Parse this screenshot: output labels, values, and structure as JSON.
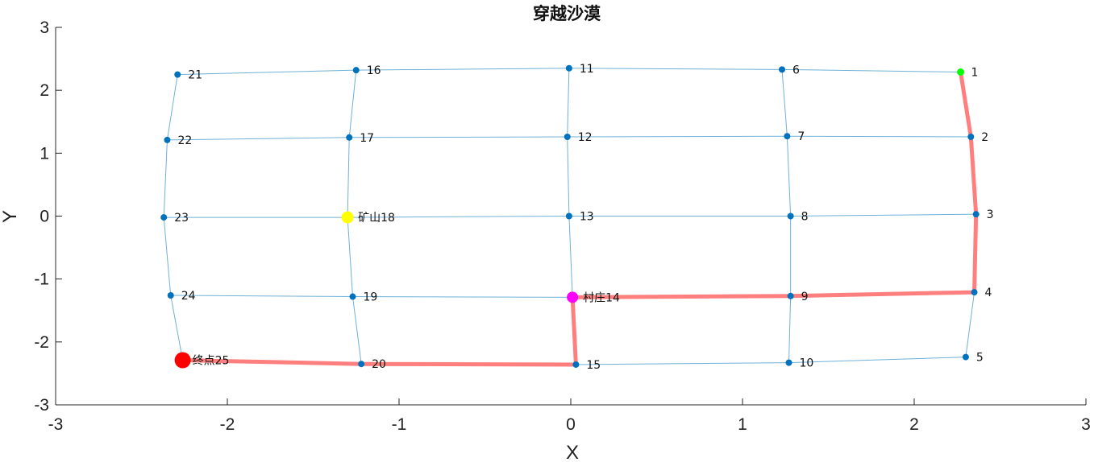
{
  "chart_data": {
    "type": "scatter",
    "title": "穿越沙漠",
    "xlabel": "X",
    "ylabel": "Y",
    "xlim": [
      -3,
      3
    ],
    "ylim": [
      -3,
      3
    ],
    "xticks": [
      "-3",
      "-2",
      "-1",
      "0",
      "1",
      "2",
      "3"
    ],
    "yticks": [
      "-3",
      "-2",
      "-1",
      "0",
      "1",
      "2",
      "3"
    ],
    "grid": false,
    "colors": {
      "edge": "#6fb0d8",
      "node": "#0072bd",
      "path": "#ff7f7f",
      "start": "#00ff00",
      "mine": "#ffff00",
      "village": "#ff00ff",
      "end": "#ff0000",
      "axis": "#262626"
    },
    "nodes": [
      {
        "id": 1,
        "label": "1",
        "x": 2.27,
        "y": 2.29,
        "role": "start"
      },
      {
        "id": 2,
        "label": "2",
        "x": 2.33,
        "y": 1.26,
        "role": "normal"
      },
      {
        "id": 3,
        "label": "3",
        "x": 2.36,
        "y": 0.03,
        "role": "normal"
      },
      {
        "id": 4,
        "label": "4",
        "x": 2.35,
        "y": -1.21,
        "role": "normal"
      },
      {
        "id": 5,
        "label": "5",
        "x": 2.3,
        "y": -2.24,
        "role": "normal"
      },
      {
        "id": 6,
        "label": "6",
        "x": 1.23,
        "y": 2.33,
        "role": "normal"
      },
      {
        "id": 7,
        "label": "7",
        "x": 1.26,
        "y": 1.27,
        "role": "normal"
      },
      {
        "id": 8,
        "label": "8",
        "x": 1.28,
        "y": 0.0,
        "role": "normal"
      },
      {
        "id": 9,
        "label": "9",
        "x": 1.28,
        "y": -1.27,
        "role": "normal"
      },
      {
        "id": 10,
        "label": "10",
        "x": 1.27,
        "y": -2.33,
        "role": "normal"
      },
      {
        "id": 11,
        "label": "11",
        "x": -0.01,
        "y": 2.35,
        "role": "normal"
      },
      {
        "id": 12,
        "label": "12",
        "x": -0.02,
        "y": 1.26,
        "role": "normal"
      },
      {
        "id": 13,
        "label": "13",
        "x": -0.01,
        "y": 0.0,
        "role": "normal"
      },
      {
        "id": 14,
        "label": "村庄14",
        "x": 0.01,
        "y": -1.29,
        "role": "village"
      },
      {
        "id": 15,
        "label": "15",
        "x": 0.03,
        "y": -2.36,
        "role": "normal"
      },
      {
        "id": 16,
        "label": "16",
        "x": -1.25,
        "y": 2.32,
        "role": "normal"
      },
      {
        "id": 17,
        "label": "17",
        "x": -1.29,
        "y": 1.25,
        "role": "normal"
      },
      {
        "id": 18,
        "label": "矿山18",
        "x": -1.3,
        "y": -0.02,
        "role": "mine"
      },
      {
        "id": 19,
        "label": "19",
        "x": -1.27,
        "y": -1.28,
        "role": "normal"
      },
      {
        "id": 20,
        "label": "20",
        "x": -1.22,
        "y": -2.35,
        "role": "normal"
      },
      {
        "id": 21,
        "label": "21",
        "x": -2.29,
        "y": 2.25,
        "role": "normal"
      },
      {
        "id": 22,
        "label": "22",
        "x": -2.35,
        "y": 1.21,
        "role": "normal"
      },
      {
        "id": 23,
        "label": "23",
        "x": -2.37,
        "y": -0.02,
        "role": "normal"
      },
      {
        "id": 24,
        "label": "24",
        "x": -2.33,
        "y": -1.26,
        "role": "normal"
      },
      {
        "id": 25,
        "label": "终点25",
        "x": -2.26,
        "y": -2.29,
        "role": "end"
      }
    ],
    "edges": [
      [
        1,
        2
      ],
      [
        2,
        3
      ],
      [
        3,
        4
      ],
      [
        4,
        5
      ],
      [
        6,
        7
      ],
      [
        7,
        8
      ],
      [
        8,
        9
      ],
      [
        9,
        10
      ],
      [
        11,
        12
      ],
      [
        12,
        13
      ],
      [
        13,
        14
      ],
      [
        14,
        15
      ],
      [
        16,
        17
      ],
      [
        17,
        18
      ],
      [
        18,
        19
      ],
      [
        19,
        20
      ],
      [
        21,
        22
      ],
      [
        22,
        23
      ],
      [
        23,
        24
      ],
      [
        24,
        25
      ],
      [
        1,
        6
      ],
      [
        6,
        11
      ],
      [
        11,
        16
      ],
      [
        16,
        21
      ],
      [
        2,
        7
      ],
      [
        7,
        12
      ],
      [
        12,
        17
      ],
      [
        17,
        22
      ],
      [
        3,
        8
      ],
      [
        8,
        13
      ],
      [
        13,
        18
      ],
      [
        18,
        23
      ],
      [
        4,
        9
      ],
      [
        9,
        14
      ],
      [
        14,
        19
      ],
      [
        19,
        24
      ],
      [
        5,
        10
      ],
      [
        10,
        15
      ],
      [
        15,
        20
      ],
      [
        20,
        25
      ]
    ],
    "path": [
      1,
      2,
      3,
      4,
      9,
      14,
      15,
      20,
      25
    ]
  }
}
